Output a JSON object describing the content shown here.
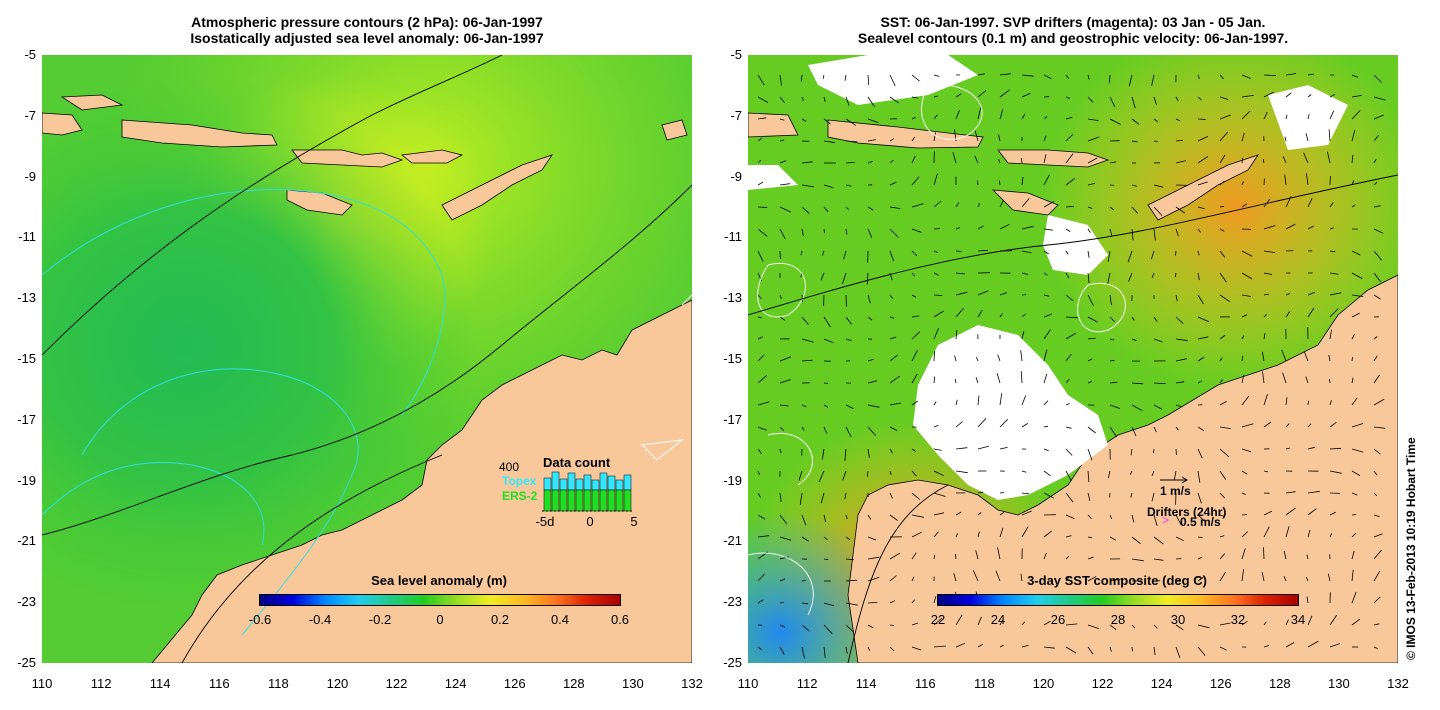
{
  "left_panel": {
    "title_line1": "Atmospheric pressure contours (2 hPa): 06-Jan-1997",
    "title_line2": "Isostatically adjusted sea level anomaly: 06-Jan-1997",
    "colorbar_title": "Sea level anomaly (m)",
    "colorbar_ticks": [
      "-0.6",
      "-0.4",
      "-0.2",
      "0",
      "0.2",
      "0.4",
      "0.6"
    ],
    "data_count": {
      "title": "Data count",
      "max_label": "400",
      "topex_label": "Topex",
      "ers_label": "ERS-2",
      "x_ticks": [
        "-5d",
        "0",
        "5"
      ],
      "topex_color": "#33e5ff",
      "ers_color": "#22dd22"
    }
  },
  "right_panel": {
    "title_line1": "SST: 06-Jan-1997. SVP drifters (magenta): 03 Jan - 05 Jan.",
    "title_line2": "Sealevel contours (0.1 m) and geostrophic velocity: 06-Jan-1997.",
    "colorbar_title": "3-day SST composite (deg C)",
    "colorbar_ticks": [
      "22",
      "24",
      "26",
      "28",
      "30",
      "32",
      "34"
    ],
    "velocity_scale_label": "1 m/s",
    "drifters_label": "Drifters (24hr)",
    "drifter_scale_label": "0.5 m/s",
    "drifter_marker": ">"
  },
  "axes": {
    "lat_ticks": [
      "-5",
      "-7",
      "-9",
      "-11",
      "-13",
      "-15",
      "-17",
      "-19",
      "-21",
      "-23",
      "-25"
    ],
    "lon_ticks": [
      "110",
      "112",
      "114",
      "116",
      "118",
      "120",
      "122",
      "124",
      "126",
      "128",
      "130",
      "132"
    ]
  },
  "copyright": "© IMOS 13-Feb-2013 10:19 Hobart Time",
  "colors": {
    "land": "#f8c89a",
    "ocean_left": "#44cc33",
    "ocean_right": "#55cc22",
    "cloud": "#ffffff"
  }
}
